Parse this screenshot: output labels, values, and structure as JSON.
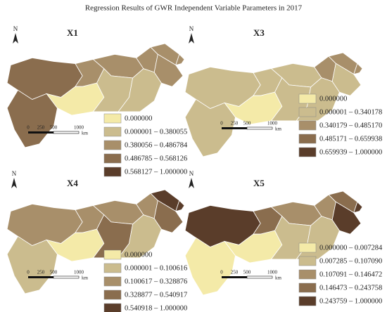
{
  "title": "Regression Results of GWR Independent Variable Parameters in 2017",
  "north": "N",
  "scale": {
    "labels": [
      "0",
      "250",
      "500",
      "1000"
    ],
    "unit": "km"
  },
  "panels": [
    {
      "label": "X1",
      "legend": [
        {
          "label": "0.000000",
          "color": "#f4eaa8"
        },
        {
          "label": "0.000001 – 0.380055",
          "color": "#cbbc8e"
        },
        {
          "label": "0.380056 – 0.486784",
          "color": "#a88f6a"
        },
        {
          "label": "0.486785 – 0.568126",
          "color": "#8a6d4e"
        },
        {
          "label": "0.568127 – 1.000000",
          "color": "#5a3d2a"
        }
      ]
    },
    {
      "label": "X3",
      "legend": [
        {
          "label": "0.000000",
          "color": "#f4eaa8"
        },
        {
          "label": "0.000001 – 0.340178",
          "color": "#cbbc8e"
        },
        {
          "label": "0.340179 – 0.485170",
          "color": "#a88f6a"
        },
        {
          "label": "0.485171 – 0.659938",
          "color": "#8a6d4e"
        },
        {
          "label": "0.659939 – 1.000000",
          "color": "#5a3d2a"
        }
      ]
    },
    {
      "label": "X4",
      "legend": [
        {
          "label": "0.000000",
          "color": "#f4eaa8"
        },
        {
          "label": "0.000001 – 0.100616",
          "color": "#cbbc8e"
        },
        {
          "label": "0.100617 – 0.328876",
          "color": "#a88f6a"
        },
        {
          "label": "0.328877 – 0.540917",
          "color": "#8a6d4e"
        },
        {
          "label": "0.540918 – 1.000000",
          "color": "#5a3d2a"
        }
      ]
    },
    {
      "label": "X5",
      "legend": [
        {
          "label": "0.000000 – 0.007284",
          "color": "#f4eaa8"
        },
        {
          "label": "0.007285 – 0.107090",
          "color": "#cbbc8e"
        },
        {
          "label": "0.107091 – 0.146472",
          "color": "#a88f6a"
        },
        {
          "label": "0.146473 – 0.243758",
          "color": "#8a6d4e"
        },
        {
          "label": "0.243759 – 1.000000",
          "color": "#5a3d2a"
        }
      ]
    }
  ]
}
